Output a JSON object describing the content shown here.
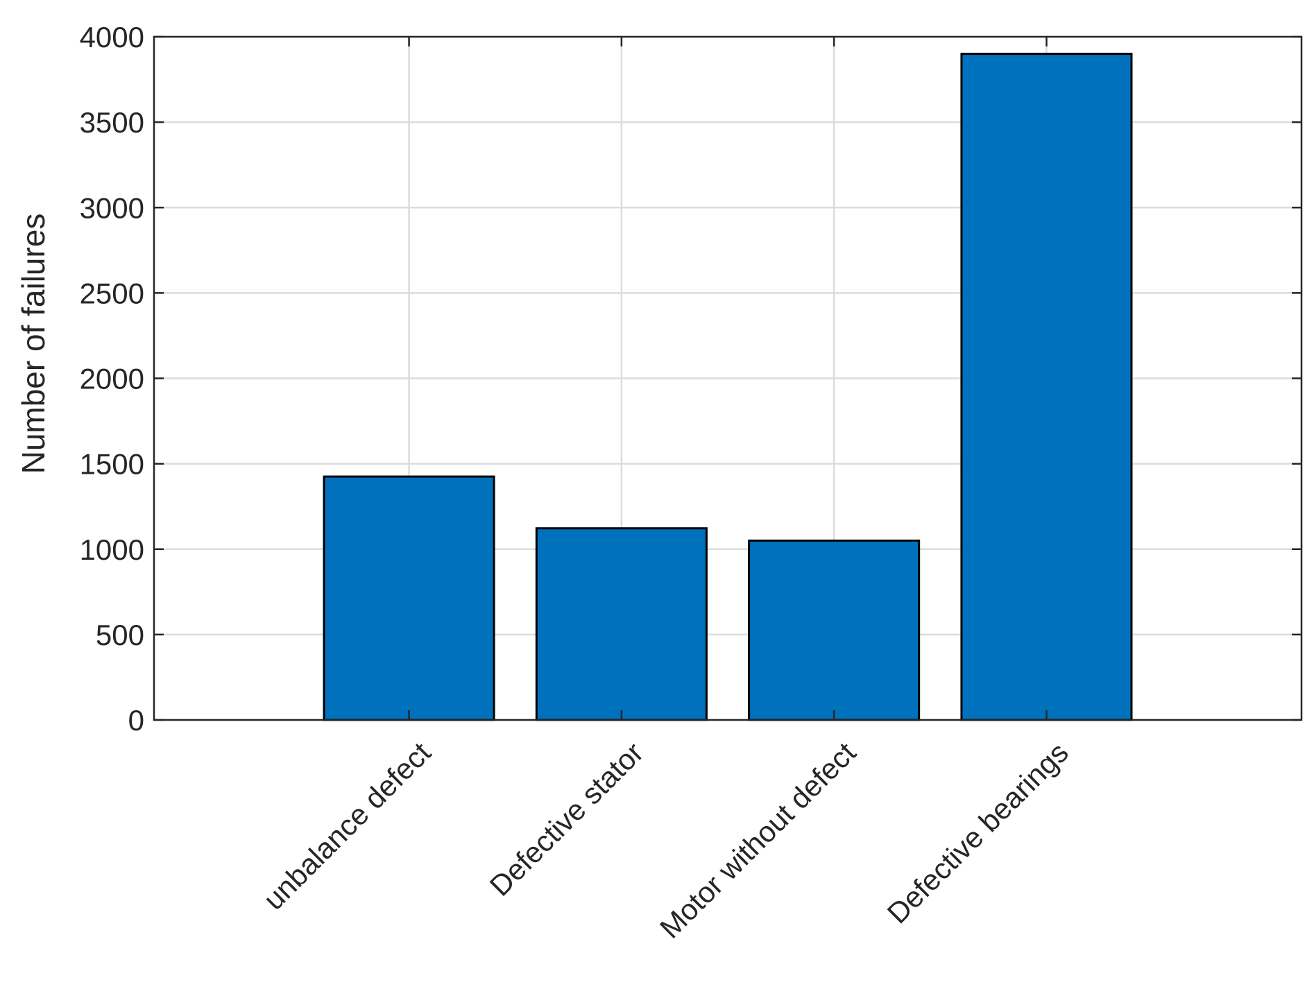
{
  "chart_data": {
    "type": "bar",
    "title": "",
    "xlabel": "",
    "ylabel": "Number of failures",
    "categories": [
      "unbalance defect",
      "Defective stator",
      "Motor without defect",
      "Defective bearings"
    ],
    "values": [
      1425,
      1122,
      1050,
      3900
    ],
    "ylim": [
      0,
      4000
    ],
    "yticks": [
      0,
      500,
      1000,
      1500,
      2000,
      2500,
      3000,
      3500,
      4000
    ],
    "grid": true,
    "bar_color": "#0072BD",
    "bar_edge_color": "#000000"
  }
}
